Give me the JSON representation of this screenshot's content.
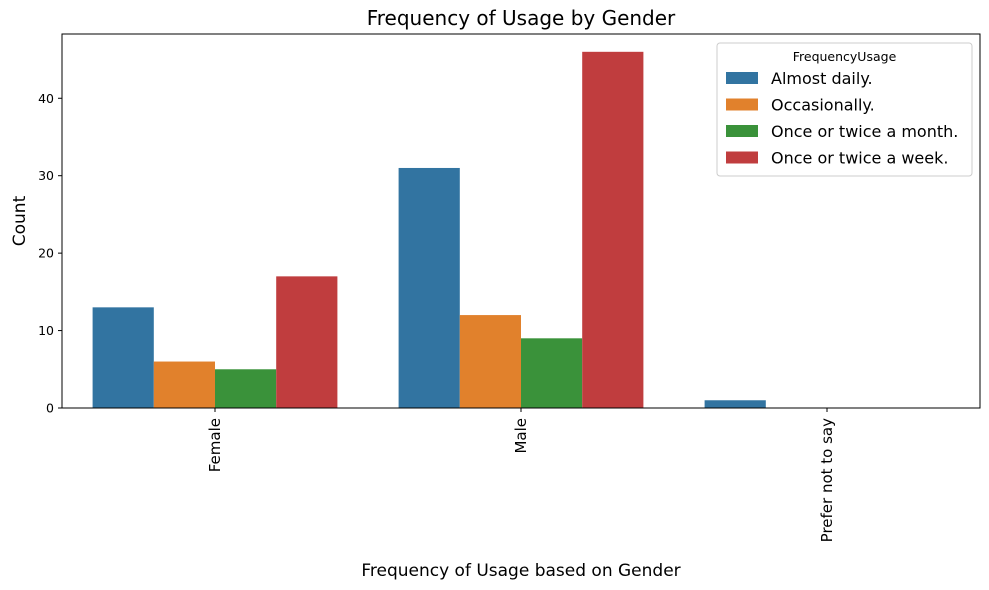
{
  "chart_data": {
    "type": "bar",
    "title": "Frequency of Usage by Gender",
    "xlabel": "Frequency of Usage based on Gender",
    "ylabel": "Count",
    "categories": [
      "Female",
      "Male",
      "Prefer not to say"
    ],
    "series": [
      {
        "name": "Almost daily.",
        "color": "#3274a1",
        "values": [
          13,
          31,
          1
        ]
      },
      {
        "name": "Occasionally.",
        "color": "#e1812c",
        "values": [
          6,
          12,
          0
        ]
      },
      {
        "name": "Once or twice a month.",
        "color": "#3a923a",
        "values": [
          5,
          9,
          0
        ]
      },
      {
        "name": "Once or twice a week.",
        "color": "#c03d3e",
        "values": [
          17,
          46,
          0
        ]
      }
    ],
    "yticks": [
      0,
      10,
      20,
      30,
      40
    ],
    "ylim": [
      0,
      48.3
    ],
    "grid": false,
    "legend": {
      "title": "FrequencyUsage",
      "placement": "top-right"
    }
  }
}
